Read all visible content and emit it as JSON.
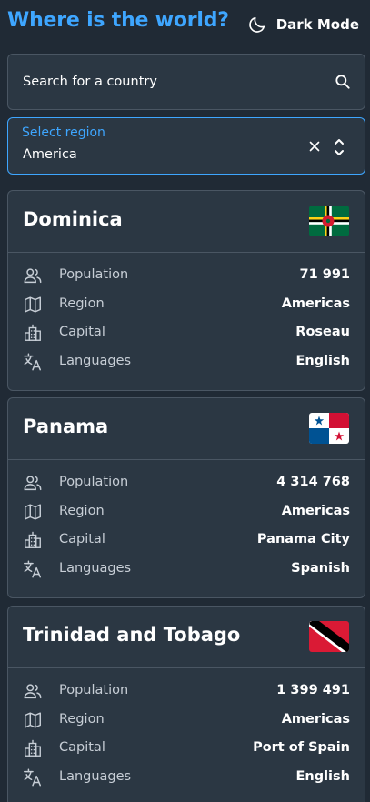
{
  "header": {
    "title": "Where is the world?",
    "dark_mode_label": "Dark Mode"
  },
  "search": {
    "placeholder": "Search for a country",
    "value": ""
  },
  "region_filter": {
    "label": "Select region",
    "value": "America"
  },
  "row_labels": {
    "population": "Population",
    "region": "Region",
    "capital": "Capital",
    "languages": "Languages"
  },
  "countries": [
    {
      "name": "Dominica",
      "population": "71 991",
      "region": "Americas",
      "capital": "Roseau",
      "languages": "English",
      "flag_icon": "dominica-flag-icon"
    },
    {
      "name": "Panama",
      "population": "4 314 768",
      "region": "Americas",
      "capital": "Panama City",
      "languages": "Spanish",
      "flag_icon": "panama-flag-icon"
    },
    {
      "name": "Trinidad and Tobago",
      "population": "1 399 491",
      "region": "Americas",
      "capital": "Port of Spain",
      "languages": "English",
      "flag_icon": "trinidad-and-tobago-flag-icon"
    }
  ],
  "colors": {
    "accent": "#3ea6ff",
    "background": "#202a35",
    "card": "#2b3743",
    "border": "#4a5663"
  }
}
